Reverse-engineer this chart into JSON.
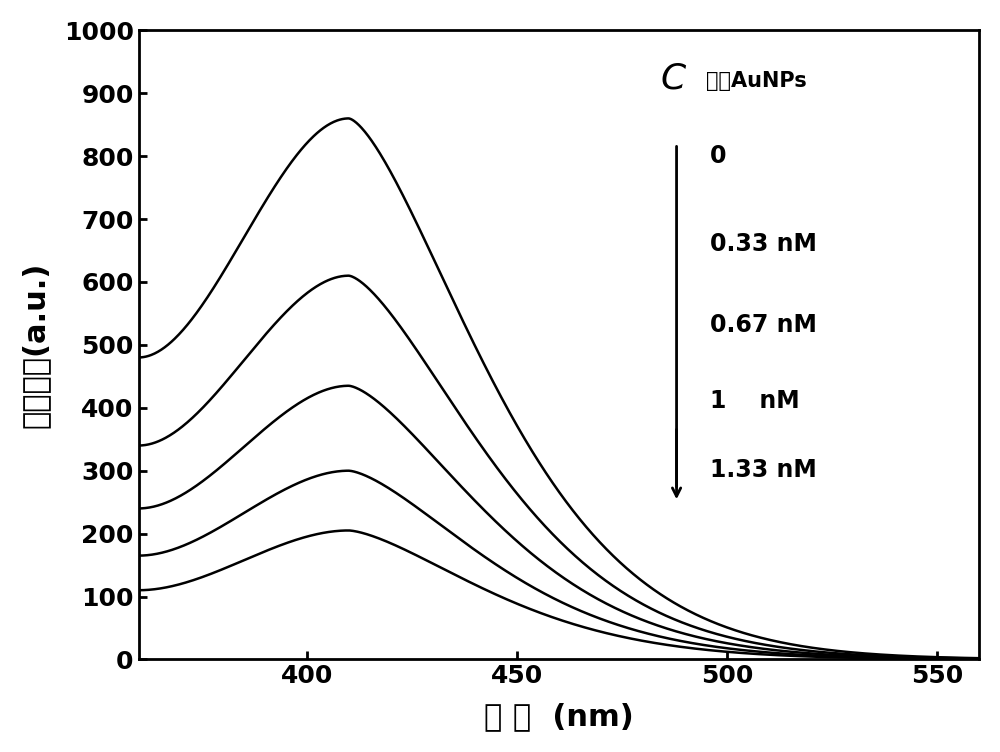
{
  "x_min": 360,
  "x_max": 560,
  "y_min": 0,
  "y_max": 1000,
  "x_ticks": [
    400,
    450,
    500,
    550
  ],
  "y_ticks": [
    0,
    100,
    200,
    300,
    400,
    500,
    600,
    700,
    800,
    900,
    1000
  ],
  "xlabel": "波 长  (nm)",
  "ylabel": "荧光强度(a.u.)",
  "peak_wavelength": 410,
  "peak_values": [
    860,
    610,
    435,
    300,
    205
  ],
  "left_values": [
    480,
    340,
    240,
    165,
    110
  ],
  "concentrations": [
    "0",
    "0.33 nM",
    "0.67 nM",
    "1    nM",
    "1.33 nM"
  ],
  "legend_title_italic": "C",
  "legend_title_subscript": "修饰AuNPs",
  "line_color": "#000000",
  "background_color": "#ffffff",
  "linewidth": 1.8
}
